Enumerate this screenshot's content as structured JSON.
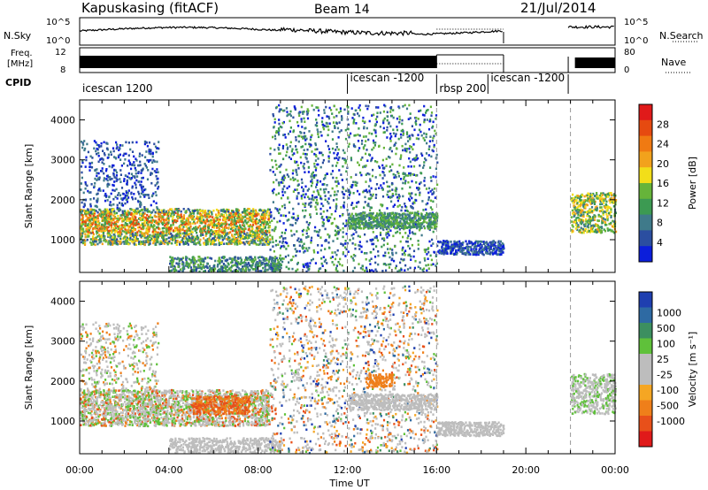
{
  "header": {
    "station": "Kapuskasing (fitACF)",
    "beam": "Beam 14",
    "date": "21/Jul/2014"
  },
  "strip_labels": {
    "nsky": "N.Sky",
    "freq_line1": "Freq.",
    "freq_line2": "[MHz]",
    "cpid": "CPID",
    "nsearch": "N.Search",
    "nave": "Nave",
    "sky_tick_top": "10^5",
    "sky_tick_bottom": "10^0",
    "freq_tick_top": "12",
    "freq_tick_bottom": "8",
    "nave_tick_top": "80",
    "nave_tick_bottom": "0"
  },
  "cpid_segments": [
    {
      "label": "icescan 1200",
      "start_hour": 0.0
    },
    {
      "label": "icescan -1200",
      "start_hour": 12.0
    },
    {
      "label": "rbsp 200",
      "start_hour": 16.0
    },
    {
      "label": "icescan -1200",
      "start_hour": 18.3
    }
  ],
  "chart_data": [
    {
      "type": "heatmap",
      "parameter": "Power",
      "ylabel": "Slant Range [km]",
      "xlabel": "Time UT",
      "x_ticks": [
        "00:00",
        "04:00",
        "08:00",
        "12:00",
        "16:00",
        "20:00",
        "00:00"
      ],
      "x_range_hours": [
        0,
        24
      ],
      "y_ticks": [
        1000,
        2000,
        3000,
        4000
      ],
      "ylim": [
        180,
        4500
      ],
      "colorbar_label": "Power [dB]",
      "colorbar_ticks": [
        4,
        8,
        12,
        16,
        20,
        24,
        28
      ],
      "colorbar_colors": [
        "#0b1edb",
        "#2b4ea0",
        "#3f7a8a",
        "#3c9a52",
        "#66b43a",
        "#f2de19",
        "#f2a21c",
        "#f07a12",
        "#e64a10",
        "#e01a1a"
      ],
      "dashed_time_markers_hours": [
        12.0,
        16.0,
        22.0
      ]
    },
    {
      "type": "heatmap",
      "parameter": "Velocity",
      "ylabel": "Slant Range [km]",
      "xlabel": "Time UT",
      "x_ticks": [
        "00:00",
        "04:00",
        "08:00",
        "12:00",
        "16:00",
        "20:00",
        "00:00"
      ],
      "x_range_hours": [
        0,
        24
      ],
      "y_ticks": [
        1000,
        2000,
        3000,
        4000
      ],
      "ylim": [
        180,
        4500
      ],
      "colorbar_label": "Velocity [m s⁻¹]",
      "colorbar_ticks": [
        1000,
        500,
        100,
        25,
        -25,
        -100,
        -500,
        -1000
      ],
      "colorbar_colors": [
        "#1f3fb0",
        "#2e6aa3",
        "#3c8f60",
        "#5fc13a",
        "#bdbdbd",
        "#bdbdbd",
        "#f5a623",
        "#ef7f1a",
        "#e8501a",
        "#e01a1a"
      ],
      "dashed_time_markers_hours": [
        12.0,
        16.0,
        22.0
      ]
    }
  ]
}
